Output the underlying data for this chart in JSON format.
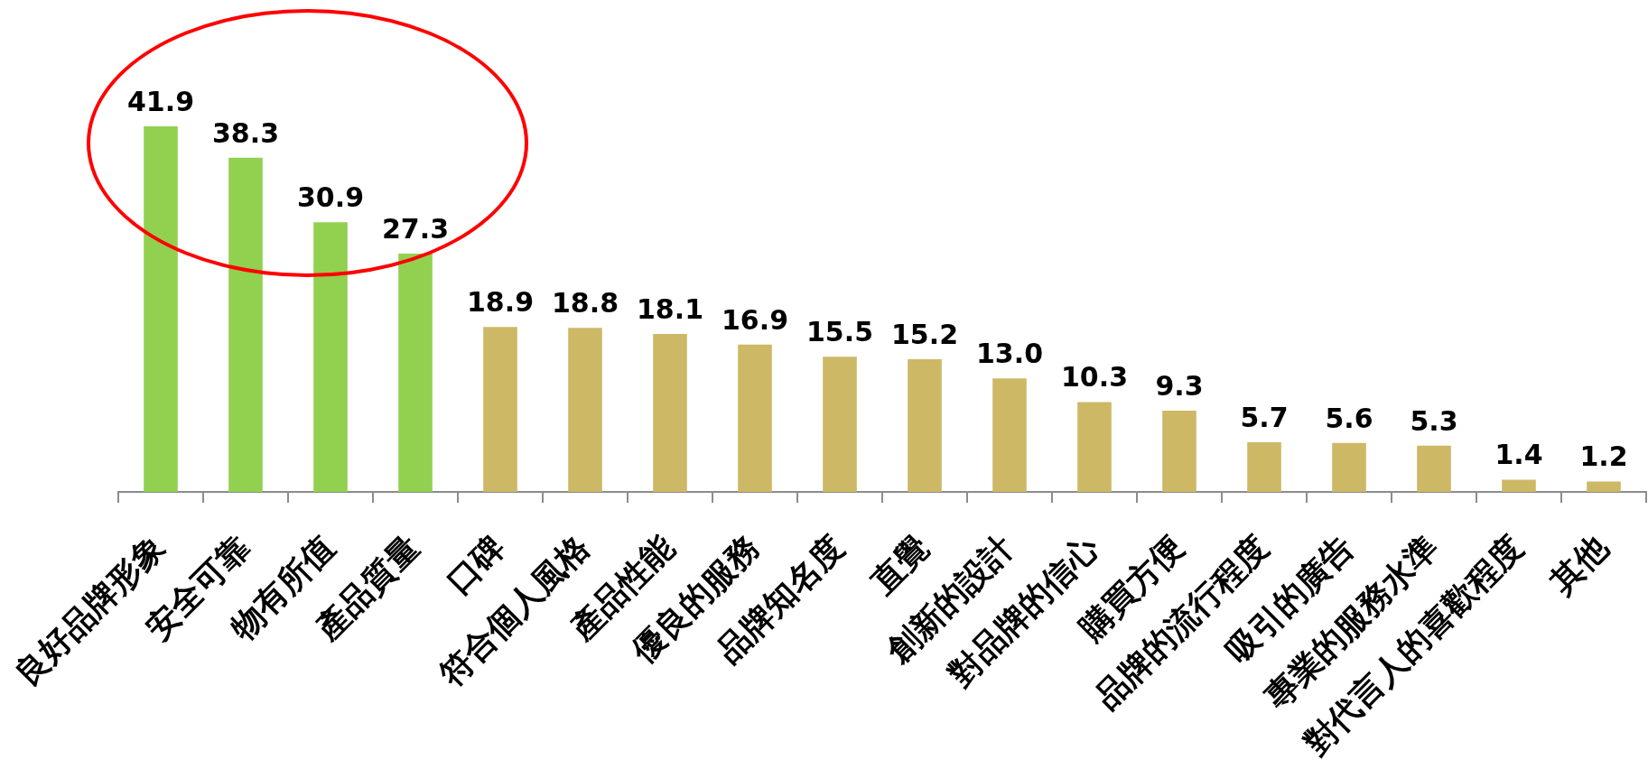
{
  "chart_data": {
    "type": "bar",
    "categories": [
      "良好品牌形象",
      "安全可靠",
      "物有所值",
      "產品質量",
      "口碑",
      "符合個人風格",
      "產品性能",
      "優良的服務",
      "品牌知名度",
      "直覺",
      "創新的設計",
      "對品牌的信心",
      "購買方便",
      "品牌的流行程度",
      "吸引的廣告",
      "專業的服務水準",
      "對代言人的喜歡程度",
      "其他"
    ],
    "values": [
      41.9,
      38.3,
      30.9,
      27.3,
      18.9,
      18.8,
      18.1,
      16.9,
      15.5,
      15.2,
      13.0,
      10.3,
      9.3,
      5.7,
      5.6,
      5.3,
      1.4,
      1.2
    ],
    "value_labels": [
      "41.9",
      "38.3",
      "30.9",
      "27.3",
      "18.9",
      "18.8",
      "18.1",
      "16.9",
      "15.5",
      "15.2",
      "13.0",
      "10.3",
      "9.3",
      "5.7",
      "5.6",
      "5.3",
      "1.4",
      "1.2"
    ],
    "colors": [
      "#92d050",
      "#92d050",
      "#92d050",
      "#92d050",
      "#cdb866",
      "#cdb866",
      "#cdb866",
      "#cdb866",
      "#cdb866",
      "#cdb866",
      "#cdb866",
      "#cdb866",
      "#cdb866",
      "#cdb866",
      "#cdb866",
      "#cdb866",
      "#cdb866",
      "#cdb866"
    ],
    "tick_labels": "x"
  }
}
